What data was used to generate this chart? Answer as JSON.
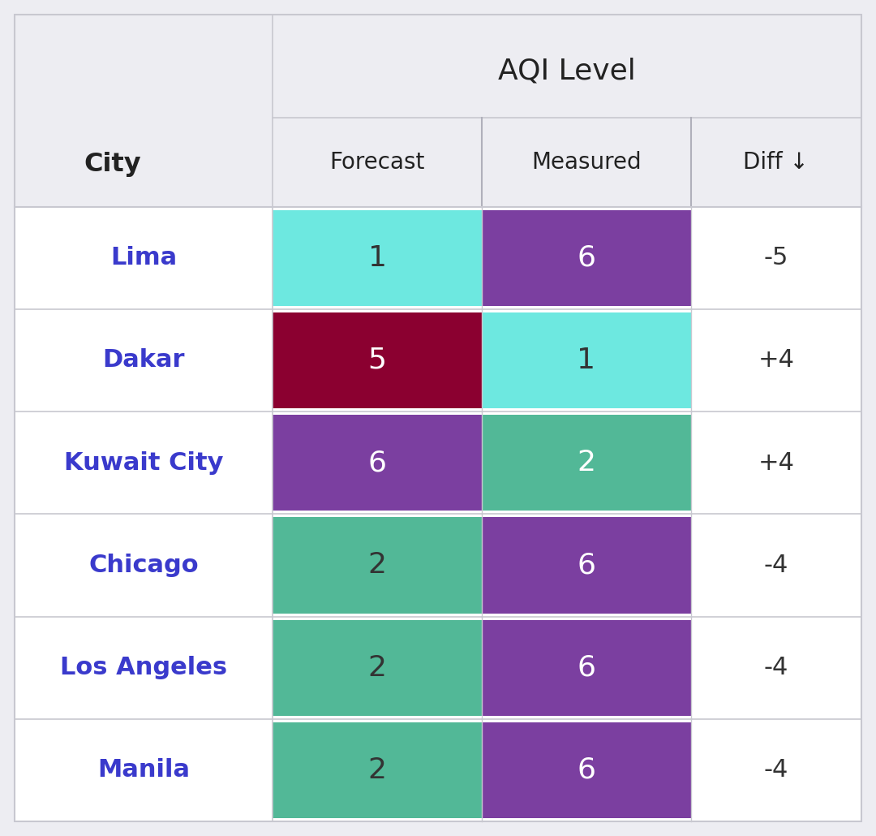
{
  "title": "AQI Level",
  "col_header_left": "City",
  "col_headers": [
    "Forecast",
    "Measured",
    "Diff ↓"
  ],
  "cities": [
    "Lima",
    "Dakar",
    "Kuwait City",
    "Chicago",
    "Los Angeles",
    "Manila"
  ],
  "forecast": [
    1,
    5,
    6,
    2,
    2,
    2
  ],
  "measured": [
    6,
    1,
    2,
    6,
    6,
    6
  ],
  "diff": [
    "-5",
    "+4",
    "+4",
    "-4",
    "-4",
    "-4"
  ],
  "forecast_colors": [
    "#6de8e0",
    "#8b0030",
    "#7b3fa0",
    "#52b897",
    "#52b897",
    "#52b897"
  ],
  "measured_colors": [
    "#7b3fa0",
    "#6de8e0",
    "#52b897",
    "#7b3fa0",
    "#7b3fa0",
    "#7b3fa0"
  ],
  "forecast_text_colors": [
    "#333333",
    "#ffffff",
    "#ffffff",
    "#333333",
    "#333333",
    "#333333"
  ],
  "measured_text_colors": [
    "#ffffff",
    "#333333",
    "#ffffff",
    "#ffffff",
    "#ffffff",
    "#ffffff"
  ],
  "city_text_color": "#3a3acc",
  "diff_text_color": "#333333",
  "header_text_color": "#222222",
  "bg_color": "#ededf2",
  "table_bg_color": "#ffffff",
  "header_bg_color": "#ededf2",
  "divider_color": "#c8c8d0",
  "divider_color2": "#b0b0bb"
}
